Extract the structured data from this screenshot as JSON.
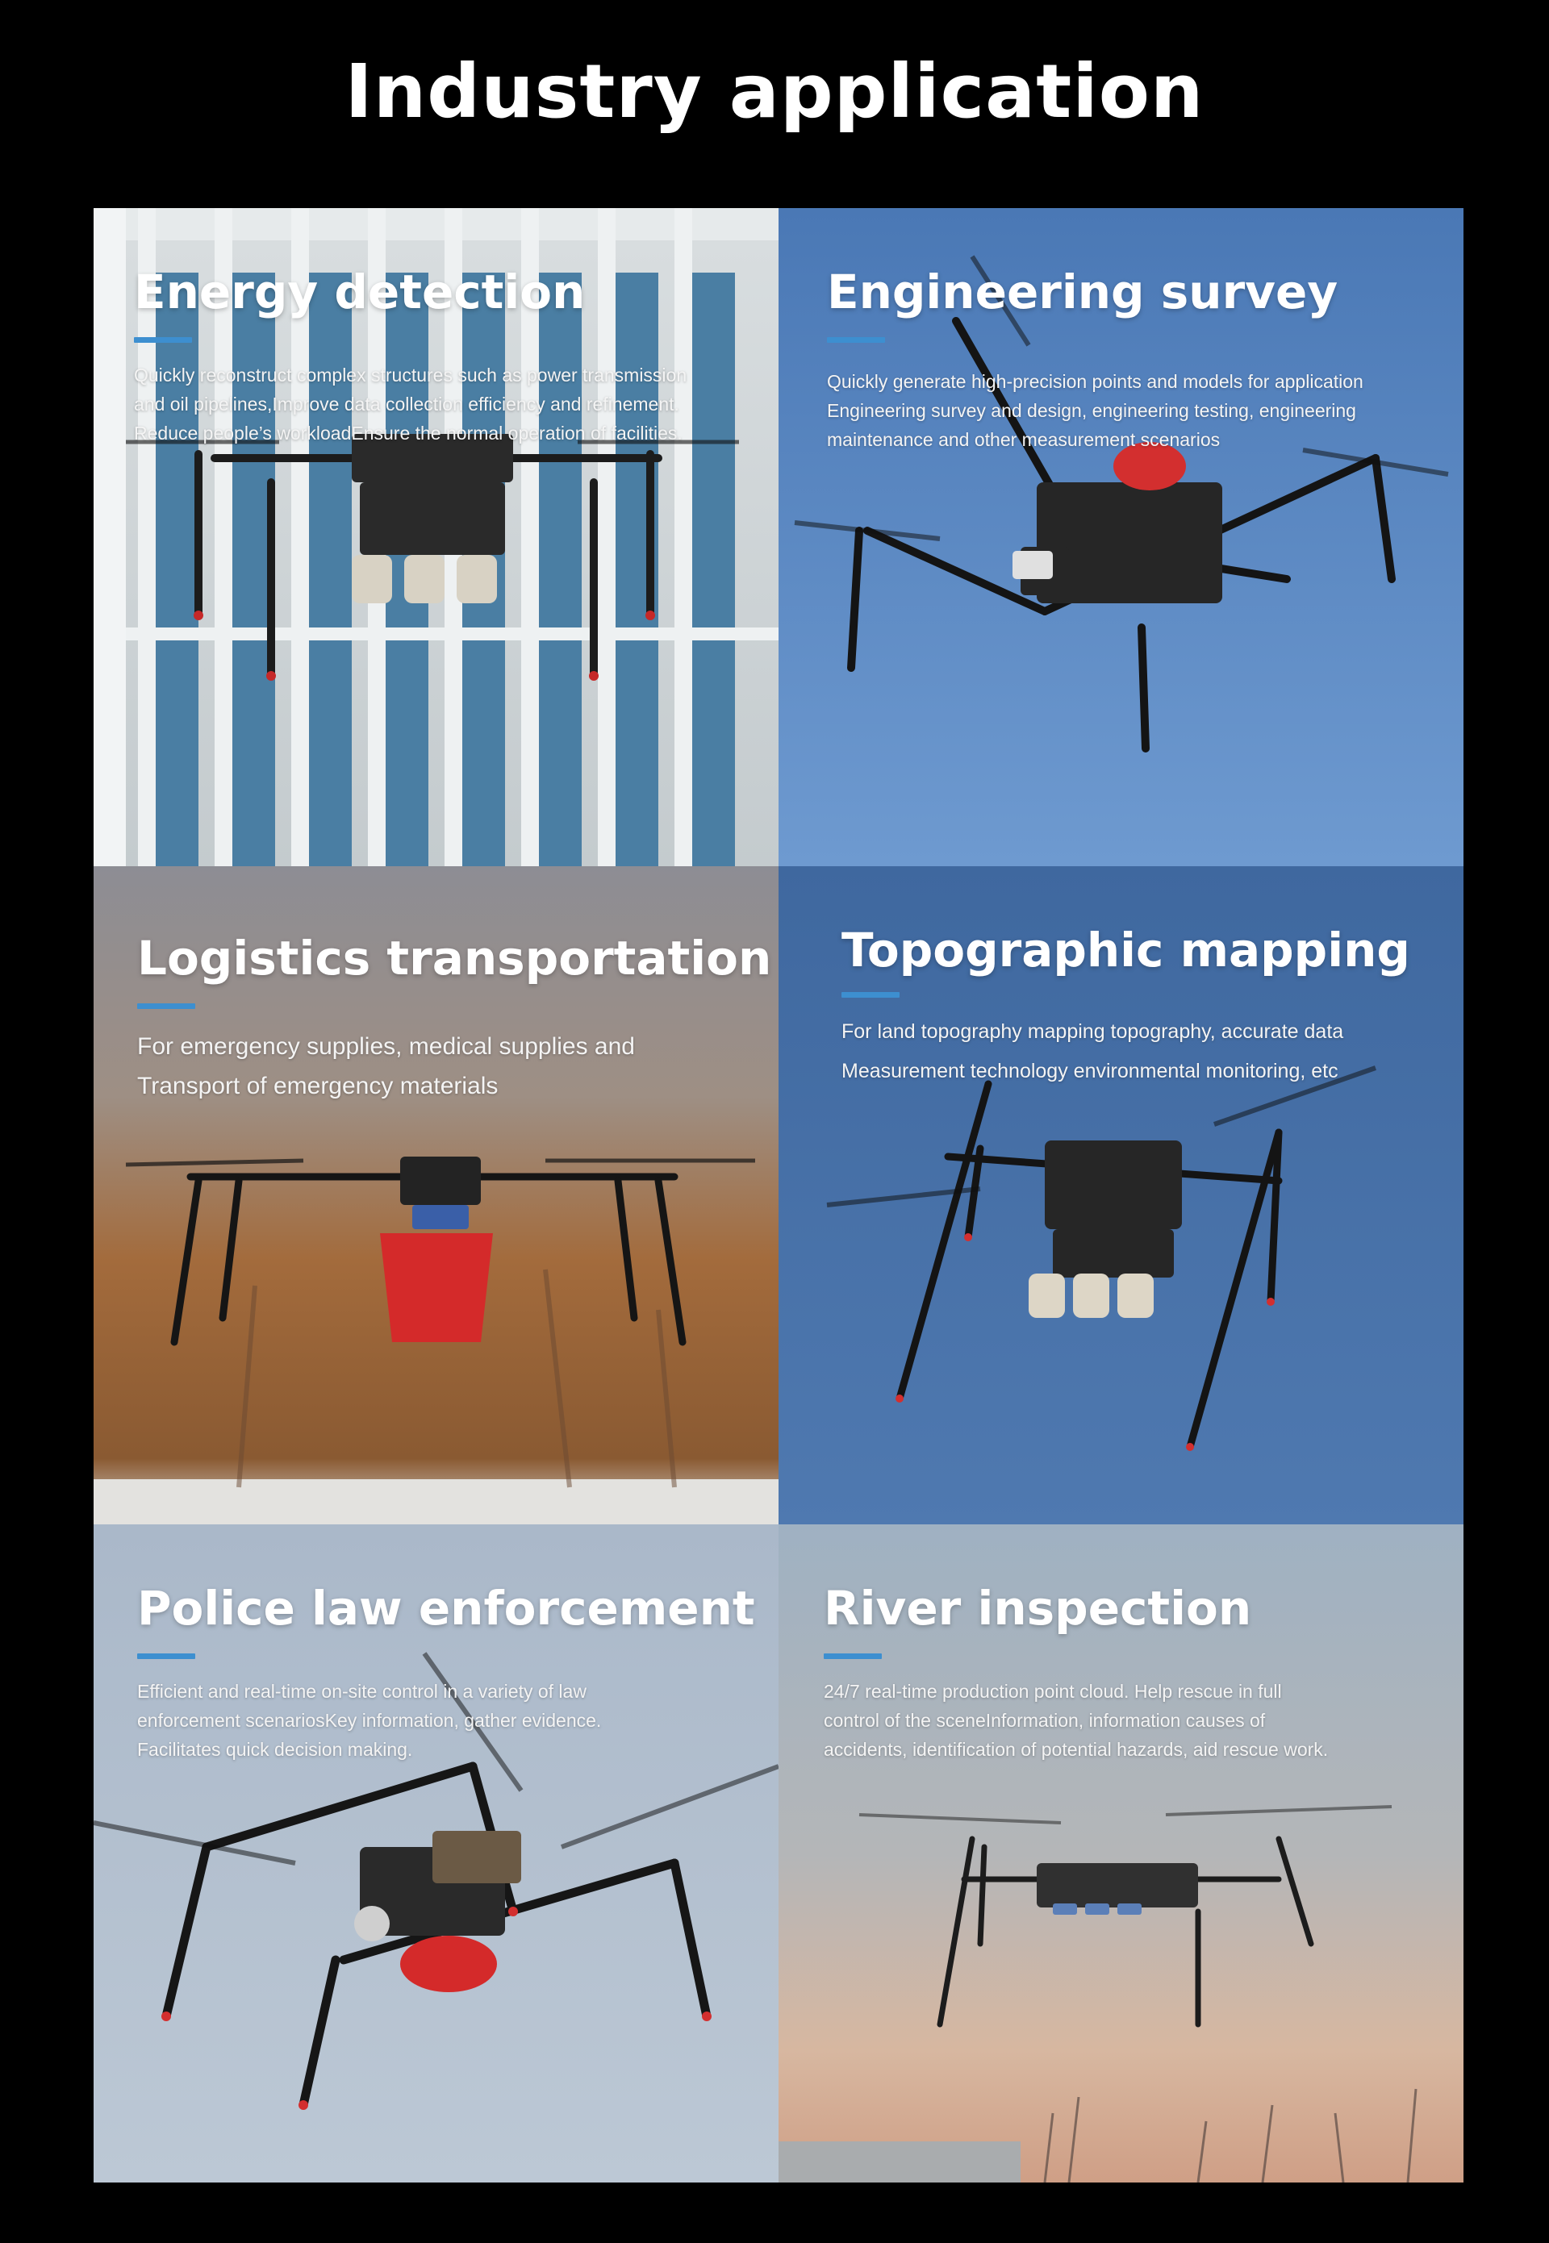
{
  "page": {
    "title": "Industry application"
  },
  "colors": {
    "accent": "#3d8fd0",
    "background": "#000000"
  },
  "panels": [
    {
      "title": "Energy detection",
      "lines": [
        "Quickly reconstruct complex structures such as power transmission",
        "and oil pipelines,Improve data collection efficiency and refinement.",
        "Reduce people’s workloadEnsure the normal operation of facilities."
      ]
    },
    {
      "title": "Engineering survey",
      "lines": [
        "Quickly generate high-precision points and models for application",
        "Engineering survey and design, engineering testing, engineering",
        "maintenance and other measurement scenarios"
      ]
    },
    {
      "title": "Logistics transportation",
      "lines": [
        "For emergency supplies, medical supplies and",
        "Transport of emergency materials"
      ]
    },
    {
      "title": "Topographic mapping",
      "lines": [
        "For land topography mapping topography, accurate data",
        "Measurement technology environmental monitoring, etc"
      ]
    },
    {
      "title": "Police law enforcement",
      "lines": [
        "Efficient and real-time on-site control in a variety of law",
        "enforcement scenariosKey information, gather evidence.",
        "Facilitates quick decision making."
      ]
    },
    {
      "title": "River inspection",
      "lines": [
        "24/7 real-time production point cloud. Help rescue in full",
        "control of the sceneInformation, information causes of",
        "accidents, identification of potential hazards, aid rescue work."
      ]
    }
  ]
}
